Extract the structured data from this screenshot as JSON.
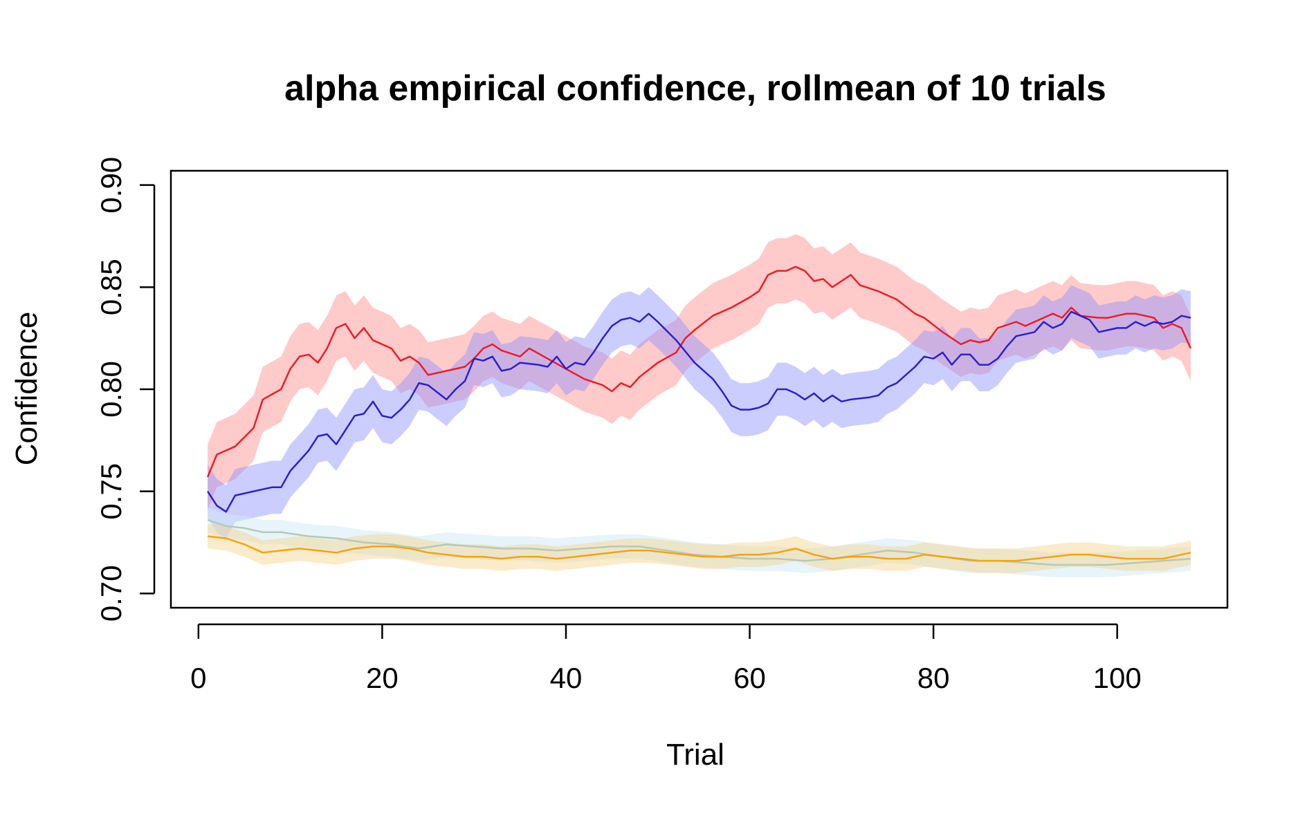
{
  "chart_data": {
    "type": "line",
    "title": "alpha empirical confidence, rollmean of  10 trials",
    "xlabel": "Trial",
    "ylabel": "Confidence",
    "xlim": [
      -3,
      112
    ],
    "ylim": [
      0.693,
      0.907
    ],
    "xticks": [
      0,
      20,
      40,
      60,
      80,
      100
    ],
    "yticks": [
      0.7,
      0.75,
      0.8,
      0.85,
      0.9
    ],
    "ytick_labels": [
      "0.70",
      "0.75",
      "0.80",
      "0.85",
      "0.90"
    ],
    "grid": false,
    "legend": "none",
    "series": [
      {
        "color": "#ee1c25",
        "band_color": "#ff9e9e",
        "band_opacity": 0.55,
        "band_halfwidth": 0.016,
        "points": [
          [
            1,
            0.757
          ],
          [
            2,
            0.768
          ],
          [
            4,
            0.772
          ],
          [
            6,
            0.781
          ],
          [
            7,
            0.795
          ],
          [
            9,
            0.8
          ],
          [
            10,
            0.81
          ],
          [
            11,
            0.816
          ],
          [
            12,
            0.817
          ],
          [
            13,
            0.813
          ],
          [
            14,
            0.82
          ],
          [
            15,
            0.83
          ],
          [
            16,
            0.832
          ],
          [
            17,
            0.825
          ],
          [
            18,
            0.83
          ],
          [
            19,
            0.824
          ],
          [
            21,
            0.82
          ],
          [
            22,
            0.814
          ],
          [
            23,
            0.816
          ],
          [
            24,
            0.813
          ],
          [
            25,
            0.807
          ],
          [
            26,
            0.808
          ],
          [
            27,
            0.809
          ],
          [
            29,
            0.811
          ],
          [
            30,
            0.815
          ],
          [
            31,
            0.82
          ],
          [
            32,
            0.822
          ],
          [
            33,
            0.819
          ],
          [
            35,
            0.816
          ],
          [
            36,
            0.82
          ],
          [
            38,
            0.815
          ],
          [
            40,
            0.81
          ],
          [
            42,
            0.805
          ],
          [
            44,
            0.802
          ],
          [
            45,
            0.799
          ],
          [
            46,
            0.803
          ],
          [
            47,
            0.801
          ],
          [
            48,
            0.806
          ],
          [
            50,
            0.813
          ],
          [
            52,
            0.818
          ],
          [
            53,
            0.825
          ],
          [
            54,
            0.829
          ],
          [
            56,
            0.836
          ],
          [
            58,
            0.84
          ],
          [
            60,
            0.845
          ],
          [
            61,
            0.848
          ],
          [
            62,
            0.856
          ],
          [
            63,
            0.858
          ],
          [
            64,
            0.858
          ],
          [
            65,
            0.86
          ],
          [
            66,
            0.858
          ],
          [
            67,
            0.853
          ],
          [
            68,
            0.854
          ],
          [
            69,
            0.85
          ],
          [
            70,
            0.853
          ],
          [
            71,
            0.856
          ],
          [
            72,
            0.851
          ],
          [
            74,
            0.848
          ],
          [
            76,
            0.844
          ],
          [
            78,
            0.837
          ],
          [
            79,
            0.835
          ],
          [
            81,
            0.828
          ],
          [
            83,
            0.822
          ],
          [
            84,
            0.824
          ],
          [
            85,
            0.823
          ],
          [
            86,
            0.824
          ],
          [
            87,
            0.83
          ],
          [
            89,
            0.833
          ],
          [
            90,
            0.831
          ],
          [
            92,
            0.835
          ],
          [
            93,
            0.837
          ],
          [
            94,
            0.835
          ],
          [
            95,
            0.84
          ],
          [
            96,
            0.836
          ],
          [
            98,
            0.835
          ],
          [
            99,
            0.835
          ],
          [
            101,
            0.837
          ],
          [
            102,
            0.837
          ],
          [
            104,
            0.835
          ],
          [
            105,
            0.83
          ],
          [
            106,
            0.832
          ],
          [
            107,
            0.83
          ],
          [
            108,
            0.82
          ]
        ]
      },
      {
        "color": "#2b1fcf",
        "band_color": "#8f91ff",
        "band_opacity": 0.45,
        "band_halfwidth": 0.013,
        "points": [
          [
            1,
            0.75
          ],
          [
            2,
            0.743
          ],
          [
            3,
            0.74
          ],
          [
            4,
            0.748
          ],
          [
            5,
            0.749
          ],
          [
            7,
            0.751
          ],
          [
            8,
            0.752
          ],
          [
            9,
            0.752
          ],
          [
            10,
            0.76
          ],
          [
            11,
            0.765
          ],
          [
            12,
            0.77
          ],
          [
            13,
            0.777
          ],
          [
            14,
            0.778
          ],
          [
            15,
            0.773
          ],
          [
            16,
            0.78
          ],
          [
            17,
            0.787
          ],
          [
            18,
            0.788
          ],
          [
            19,
            0.794
          ],
          [
            20,
            0.787
          ],
          [
            21,
            0.786
          ],
          [
            22,
            0.79
          ],
          [
            23,
            0.795
          ],
          [
            24,
            0.803
          ],
          [
            25,
            0.802
          ],
          [
            27,
            0.795
          ],
          [
            28,
            0.8
          ],
          [
            29,
            0.804
          ],
          [
            30,
            0.815
          ],
          [
            31,
            0.814
          ],
          [
            32,
            0.816
          ],
          [
            33,
            0.809
          ],
          [
            34,
            0.81
          ],
          [
            35,
            0.813
          ],
          [
            37,
            0.812
          ],
          [
            38,
            0.811
          ],
          [
            39,
            0.816
          ],
          [
            40,
            0.81
          ],
          [
            41,
            0.813
          ],
          [
            42,
            0.812
          ],
          [
            43,
            0.818
          ],
          [
            44,
            0.825
          ],
          [
            45,
            0.831
          ],
          [
            46,
            0.834
          ],
          [
            47,
            0.835
          ],
          [
            48,
            0.833
          ],
          [
            49,
            0.837
          ],
          [
            50,
            0.833
          ],
          [
            52,
            0.824
          ],
          [
            54,
            0.813
          ],
          [
            56,
            0.805
          ],
          [
            57,
            0.799
          ],
          [
            58,
            0.792
          ],
          [
            59,
            0.79
          ],
          [
            60,
            0.79
          ],
          [
            61,
            0.791
          ],
          [
            62,
            0.793
          ],
          [
            63,
            0.8
          ],
          [
            64,
            0.8
          ],
          [
            65,
            0.798
          ],
          [
            66,
            0.795
          ],
          [
            67,
            0.798
          ],
          [
            68,
            0.794
          ],
          [
            69,
            0.797
          ],
          [
            70,
            0.794
          ],
          [
            71,
            0.795
          ],
          [
            73,
            0.796
          ],
          [
            74,
            0.797
          ],
          [
            75,
            0.801
          ],
          [
            76,
            0.803
          ],
          [
            78,
            0.811
          ],
          [
            79,
            0.816
          ],
          [
            80,
            0.815
          ],
          [
            81,
            0.818
          ],
          [
            82,
            0.812
          ],
          [
            83,
            0.817
          ],
          [
            84,
            0.817
          ],
          [
            85,
            0.812
          ],
          [
            86,
            0.812
          ],
          [
            87,
            0.815
          ],
          [
            88,
            0.821
          ],
          [
            89,
            0.826
          ],
          [
            90,
            0.827
          ],
          [
            91,
            0.828
          ],
          [
            92,
            0.833
          ],
          [
            93,
            0.83
          ],
          [
            94,
            0.832
          ],
          [
            95,
            0.838
          ],
          [
            96,
            0.836
          ],
          [
            97,
            0.834
          ],
          [
            98,
            0.828
          ],
          [
            99,
            0.829
          ],
          [
            100,
            0.83
          ],
          [
            101,
            0.83
          ],
          [
            102,
            0.833
          ],
          [
            103,
            0.831
          ],
          [
            104,
            0.833
          ],
          [
            105,
            0.832
          ],
          [
            106,
            0.833
          ],
          [
            107,
            0.836
          ],
          [
            108,
            0.835
          ]
        ]
      },
      {
        "color": "#b6c9b4",
        "band_color": "#cfe9f5",
        "band_opacity": 0.5,
        "band_halfwidth": 0.006,
        "points": [
          [
            1,
            0.736
          ],
          [
            3,
            0.733
          ],
          [
            5,
            0.732
          ],
          [
            7,
            0.73
          ],
          [
            9,
            0.73
          ],
          [
            12,
            0.728
          ],
          [
            15,
            0.727
          ],
          [
            18,
            0.725
          ],
          [
            21,
            0.724
          ],
          [
            24,
            0.722
          ],
          [
            27,
            0.724
          ],
          [
            30,
            0.723
          ],
          [
            33,
            0.722
          ],
          [
            36,
            0.722
          ],
          [
            39,
            0.721
          ],
          [
            42,
            0.722
          ],
          [
            45,
            0.723
          ],
          [
            48,
            0.723
          ],
          [
            51,
            0.721
          ],
          [
            54,
            0.719
          ],
          [
            57,
            0.718
          ],
          [
            60,
            0.717
          ],
          [
            63,
            0.717
          ],
          [
            66,
            0.716
          ],
          [
            69,
            0.717
          ],
          [
            72,
            0.719
          ],
          [
            75,
            0.721
          ],
          [
            78,
            0.72
          ],
          [
            81,
            0.718
          ],
          [
            84,
            0.716
          ],
          [
            87,
            0.716
          ],
          [
            90,
            0.715
          ],
          [
            93,
            0.714
          ],
          [
            96,
            0.714
          ],
          [
            99,
            0.714
          ],
          [
            102,
            0.715
          ],
          [
            105,
            0.716
          ],
          [
            108,
            0.717
          ]
        ]
      },
      {
        "color": "#f5a30f",
        "band_color": "#f5d28c",
        "band_opacity": 0.45,
        "band_halfwidth": 0.006,
        "points": [
          [
            1,
            0.728
          ],
          [
            3,
            0.727
          ],
          [
            5,
            0.724
          ],
          [
            7,
            0.72
          ],
          [
            9,
            0.721
          ],
          [
            11,
            0.722
          ],
          [
            13,
            0.721
          ],
          [
            15,
            0.72
          ],
          [
            17,
            0.722
          ],
          [
            19,
            0.723
          ],
          [
            21,
            0.723
          ],
          [
            23,
            0.722
          ],
          [
            25,
            0.72
          ],
          [
            27,
            0.719
          ],
          [
            29,
            0.718
          ],
          [
            31,
            0.718
          ],
          [
            33,
            0.717
          ],
          [
            35,
            0.718
          ],
          [
            37,
            0.718
          ],
          [
            39,
            0.717
          ],
          [
            41,
            0.718
          ],
          [
            43,
            0.719
          ],
          [
            45,
            0.72
          ],
          [
            47,
            0.721
          ],
          [
            49,
            0.721
          ],
          [
            51,
            0.72
          ],
          [
            53,
            0.719
          ],
          [
            55,
            0.718
          ],
          [
            57,
            0.718
          ],
          [
            59,
            0.719
          ],
          [
            61,
            0.719
          ],
          [
            63,
            0.72
          ],
          [
            65,
            0.722
          ],
          [
            67,
            0.719
          ],
          [
            69,
            0.717
          ],
          [
            71,
            0.718
          ],
          [
            73,
            0.718
          ],
          [
            75,
            0.717
          ],
          [
            77,
            0.717
          ],
          [
            79,
            0.719
          ],
          [
            81,
            0.718
          ],
          [
            83,
            0.717
          ],
          [
            85,
            0.716
          ],
          [
            87,
            0.716
          ],
          [
            89,
            0.716
          ],
          [
            91,
            0.717
          ],
          [
            93,
            0.718
          ],
          [
            95,
            0.719
          ],
          [
            97,
            0.719
          ],
          [
            99,
            0.718
          ],
          [
            101,
            0.717
          ],
          [
            103,
            0.717
          ],
          [
            105,
            0.717
          ],
          [
            107,
            0.719
          ],
          [
            108,
            0.72
          ]
        ]
      }
    ]
  }
}
